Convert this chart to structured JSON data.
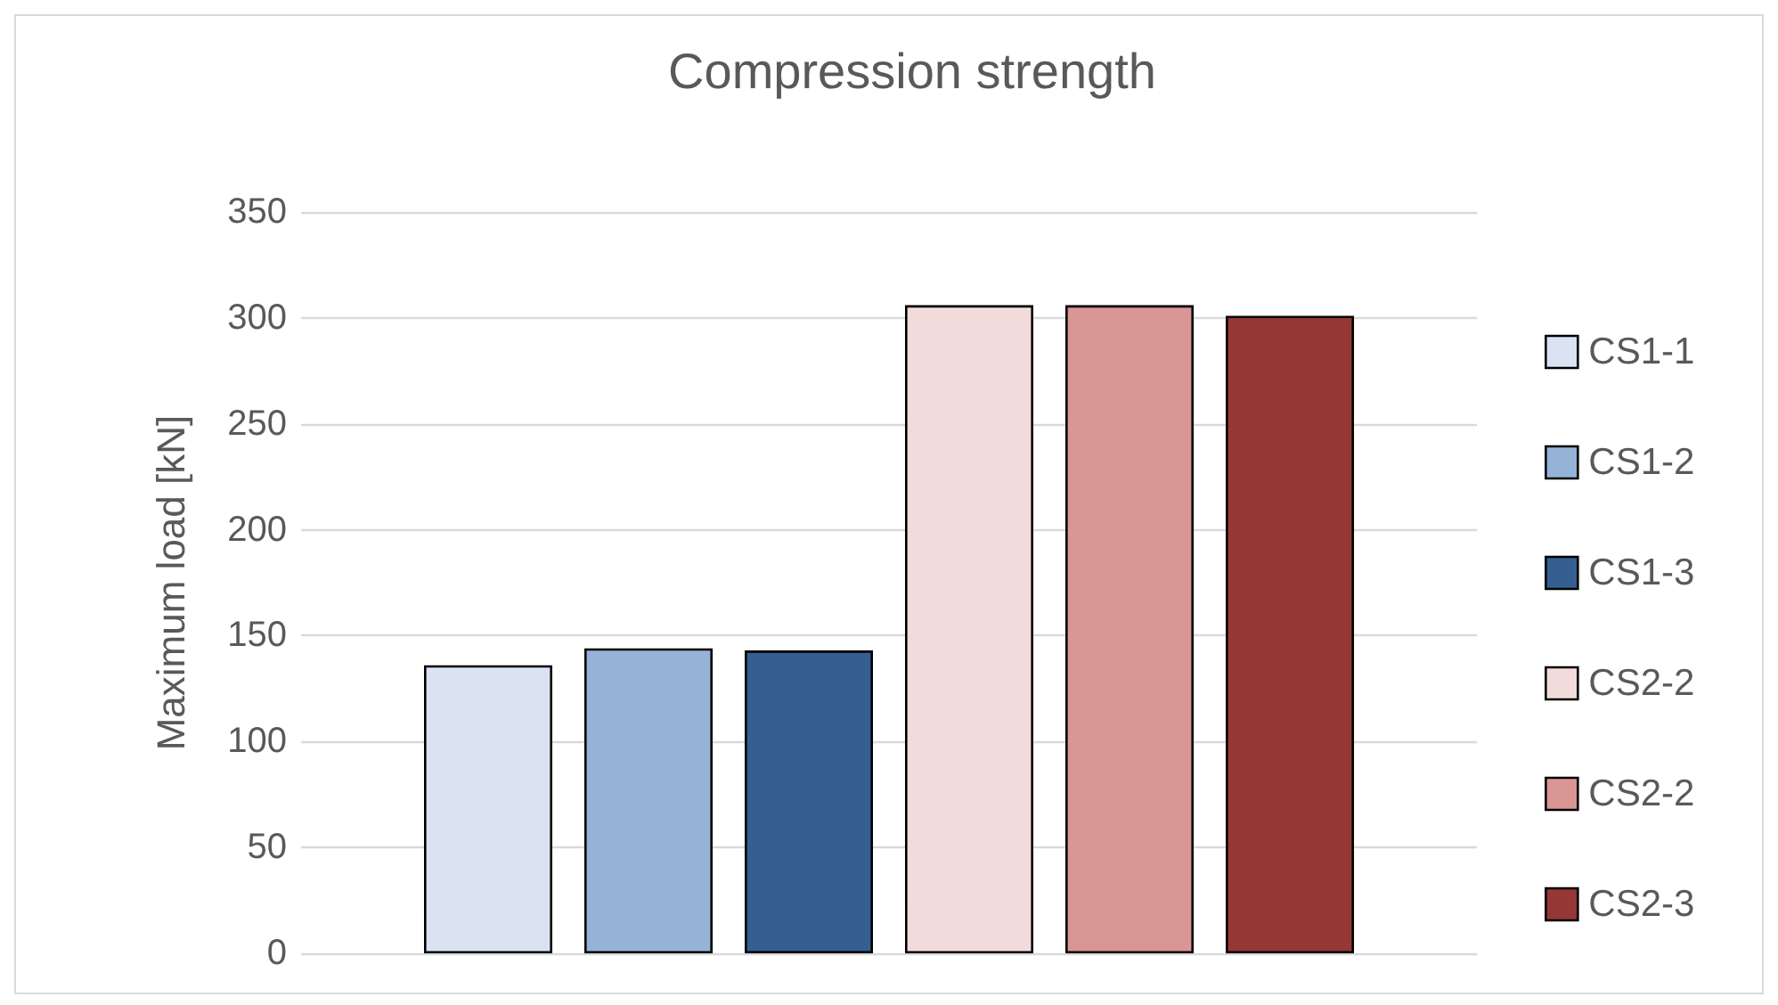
{
  "chart_data": {
    "type": "bar",
    "title": "Compression strength",
    "ylabel": "Maximum load [kN]",
    "categories": [
      null
    ],
    "series": [
      {
        "name": "CS1-1",
        "color": "#dae3f1",
        "values": [
          136
        ]
      },
      {
        "name": "CS1-2",
        "color": "#95b3d7",
        "values": [
          144
        ]
      },
      {
        "name": "CS1-3",
        "color": "#355f91",
        "values": [
          143
        ]
      },
      {
        "name": "CS2-2",
        "color": "#f2dcdb",
        "values": [
          306
        ]
      },
      {
        "name": "CS2-2",
        "color": "#d99694",
        "values": [
          306
        ]
      },
      {
        "name": "CS2-3",
        "color": "#953735",
        "values": [
          301
        ]
      }
    ],
    "ylim": [
      0,
      350
    ],
    "yticks": [
      0,
      50,
      100,
      150,
      200,
      250,
      300,
      350
    ],
    "grid": "y",
    "legend": "right",
    "tick_labels": "y"
  }
}
